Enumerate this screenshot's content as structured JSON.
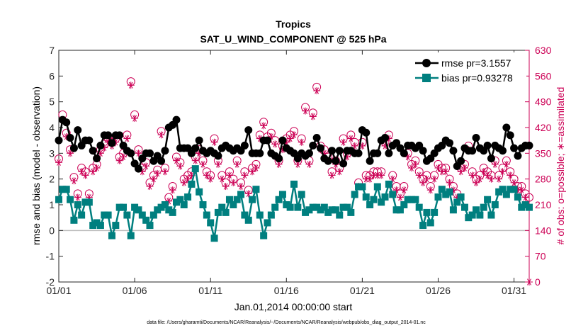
{
  "chart_data": {
    "type": "line",
    "title": "Tropics",
    "subtitle": "SAT_U_WIND_COMPONENT @ 525 hPa",
    "xlabel": "Jan.01,2014 00:00:00 start",
    "ylabel": "rmse and bias (model - observation)",
    "y2label": "# of obs: o=possible; ∗=assimilated",
    "footer": "data file: /Users/gharamti/Documents/NCAR/Reanalysis/~/Documents/NCAR/Reanalysis/webpub/obs_diag_output_2014-01.nc",
    "xlim": [
      0,
      31
    ],
    "ylim": [
      -2,
      7
    ],
    "y2lim": [
      0,
      630
    ],
    "x_tick_values": [
      0,
      5,
      10,
      15,
      20,
      25,
      30
    ],
    "x_tick_labels": [
      "01/01",
      "01/06",
      "01/11",
      "01/16",
      "01/21",
      "01/26",
      "01/31"
    ],
    "y_ticks": [
      "-2",
      "-1",
      "0",
      "1",
      "2",
      "3",
      "4",
      "5",
      "6",
      "7"
    ],
    "y2_ticks": [
      "0",
      "70",
      "140",
      "210",
      "280",
      "350",
      "420",
      "490",
      "560",
      "630"
    ],
    "colors": {
      "rmse": "#000000",
      "bias": "#007f7f",
      "obs": "#cc0055",
      "zero_line": "#bbbbbb"
    },
    "series": [
      {
        "name": "rmse pr=3.1557",
        "marker": "circle",
        "x": [
          0.0,
          0.25,
          0.5,
          0.75,
          1.0,
          1.25,
          1.5,
          1.75,
          2.0,
          2.25,
          2.5,
          2.75,
          3.0,
          3.25,
          3.5,
          3.75,
          4.0,
          4.25,
          4.5,
          4.75,
          5.0,
          5.25,
          5.5,
          5.75,
          6.0,
          6.25,
          6.5,
          6.75,
          7.0,
          7.25,
          7.5,
          7.75,
          8.0,
          8.25,
          8.5,
          8.75,
          9.0,
          9.25,
          9.5,
          9.75,
          10.0,
          10.25,
          10.5,
          10.75,
          11.0,
          11.25,
          11.5,
          11.75,
          12.0,
          12.25,
          12.5,
          12.75,
          13.0,
          13.25,
          13.5,
          13.75,
          14.0,
          14.25,
          14.5,
          14.75,
          15.0,
          15.25,
          15.5,
          15.75,
          16.0,
          16.25,
          16.5,
          16.75,
          17.0,
          17.25,
          17.5,
          17.75,
          18.0,
          18.25,
          18.5,
          18.75,
          19.0,
          19.25,
          19.5,
          19.75,
          20.0,
          20.25,
          20.5,
          20.75,
          21.0,
          21.25,
          21.5,
          21.75,
          22.0,
          22.25,
          22.5,
          22.75,
          23.0,
          23.25,
          23.5,
          23.75,
          24.0,
          24.25,
          24.5,
          24.75,
          25.0,
          25.25,
          25.5,
          25.75,
          26.0,
          26.25,
          26.5,
          26.75,
          27.0,
          27.25,
          27.5,
          27.75,
          28.0,
          28.25,
          28.5,
          28.75,
          29.0,
          29.25,
          29.5,
          29.75,
          30.0,
          30.25,
          30.5,
          30.75,
          31.0
        ],
        "values": [
          3.5,
          4.3,
          4.2,
          3.6,
          3.2,
          3.9,
          3.3,
          3.5,
          3.5,
          3.1,
          2.8,
          3.3,
          3.7,
          3.7,
          3.4,
          3.7,
          3.7,
          3.3,
          3.1,
          3.0,
          2.6,
          2.4,
          2.8,
          3.0,
          3.0,
          2.7,
          2.9,
          2.7,
          3.1,
          4.0,
          4.1,
          4.3,
          3.2,
          3.2,
          3.2,
          3.0,
          3.2,
          3.5,
          3.1,
          3.0,
          3.1,
          3.0,
          2.9,
          3.2,
          3.3,
          3.2,
          3.1,
          3.2,
          3.1,
          3.3,
          3.9,
          3.0,
          3.0,
          3.0,
          3.5,
          3.5,
          3.0,
          2.9,
          2.8,
          3.5,
          3.2,
          3.1,
          3.0,
          2.8,
          3.0,
          2.9,
          3.0,
          3.3,
          3.6,
          3.2,
          2.8,
          2.7,
          3.1,
          2.7,
          3.1,
          2.6,
          3.1,
          3.1,
          3.0,
          3.0,
          3.9,
          3.8,
          2.7,
          3.0,
          3.0,
          3.5,
          3.6,
          3.0,
          3.3,
          3.4,
          3.2,
          3.0,
          3.3,
          3.3,
          3.2,
          3.3,
          3.1,
          2.7,
          2.8,
          3.0,
          3.2,
          3.3,
          3.5,
          3.4,
          3.1,
          2.5,
          2.7,
          3.2,
          3.1,
          3.1,
          3.6,
          3.2,
          3.1,
          3.3,
          2.8,
          3.3,
          3.2,
          3.1,
          4.0,
          3.7,
          3.2,
          2.9,
          3.2,
          3.3,
          3.3
        ]
      },
      {
        "name": "bias pr=0.93278",
        "marker": "square",
        "x": [
          0.0,
          0.25,
          0.5,
          0.75,
          1.0,
          1.25,
          1.5,
          1.75,
          2.0,
          2.25,
          2.5,
          2.75,
          3.0,
          3.25,
          3.5,
          3.75,
          4.0,
          4.25,
          4.5,
          4.75,
          5.0,
          5.25,
          5.5,
          5.75,
          6.0,
          6.25,
          6.5,
          6.75,
          7.0,
          7.25,
          7.5,
          7.75,
          8.0,
          8.25,
          8.5,
          8.75,
          9.0,
          9.25,
          9.5,
          9.75,
          10.0,
          10.25,
          10.5,
          10.75,
          11.0,
          11.25,
          11.5,
          11.75,
          12.0,
          12.25,
          12.5,
          12.75,
          13.0,
          13.25,
          13.5,
          13.75,
          14.0,
          14.25,
          14.5,
          14.75,
          15.0,
          15.25,
          15.5,
          15.75,
          16.0,
          16.25,
          16.5,
          16.75,
          17.0,
          17.25,
          17.5,
          17.75,
          18.0,
          18.25,
          18.5,
          18.75,
          19.0,
          19.25,
          19.5,
          19.75,
          20.0,
          20.25,
          20.5,
          20.75,
          21.0,
          21.25,
          21.5,
          21.75,
          22.0,
          22.25,
          22.5,
          22.75,
          23.0,
          23.25,
          23.5,
          23.75,
          24.0,
          24.25,
          24.5,
          24.75,
          25.0,
          25.25,
          25.5,
          25.75,
          26.0,
          26.25,
          26.5,
          26.75,
          27.0,
          27.25,
          27.5,
          27.75,
          28.0,
          28.25,
          28.5,
          28.75,
          29.0,
          29.25,
          29.5,
          29.75,
          30.0,
          30.25,
          30.5,
          30.75,
          31.0
        ],
        "values": [
          1.2,
          1.6,
          1.6,
          1.2,
          0.4,
          1.0,
          0.6,
          1.1,
          1.1,
          0.2,
          0.3,
          0.2,
          0.6,
          0.6,
          -0.2,
          0.2,
          0.9,
          0.9,
          0.6,
          -0.2,
          0.9,
          0.8,
          0.6,
          0.4,
          0.2,
          0.6,
          0.8,
          0.9,
          1.0,
          0.8,
          0.7,
          1.1,
          1.2,
          1.0,
          1.3,
          1.8,
          2.4,
          1.5,
          1.0,
          0.6,
          0.3,
          -0.3,
          0.7,
          0.9,
          0.7,
          1.2,
          1.0,
          1.2,
          1.4,
          0.6,
          0.4,
          1.2,
          1.6,
          0.6,
          -0.2,
          0.3,
          0.6,
          0.9,
          1.2,
          1.4,
          1.0,
          0.9,
          1.8,
          0.9,
          1.4,
          0.7,
          0.8,
          0.9,
          0.9,
          0.8,
          0.9,
          0.7,
          0.8,
          0.8,
          0.6,
          0.9,
          0.9,
          0.7,
          1.4,
          1.7,
          1.7,
          1.3,
          1.0,
          1.2,
          1.7,
          1.1,
          1.3,
          1.8,
          1.4,
          0.8,
          0.8,
          1.0,
          1.2,
          1.2,
          1.2,
          0.9,
          0.2,
          0.7,
          0.3,
          0.7,
          1.3,
          1.6,
          1.4,
          1.5,
          0.8,
          1.1,
          1.3,
          0.9,
          0.5,
          0.6,
          0.8,
          0.6,
          0.9,
          1.2,
          0.6,
          1.0,
          1.5,
          1.6,
          1.4,
          1.6,
          1.6,
          1.3,
          0.9,
          1.0,
          0.9
        ]
      },
      {
        "name": "# obs possible",
        "marker": "o",
        "axis": "right",
        "x": [
          0.0,
          0.25,
          0.5,
          0.75,
          1.0,
          1.25,
          1.5,
          1.75,
          2.0,
          2.25,
          2.5,
          2.75,
          3.0,
          3.25,
          3.5,
          3.75,
          4.0,
          4.25,
          4.5,
          4.75,
          5.0,
          5.25,
          5.5,
          5.75,
          6.0,
          6.25,
          6.5,
          6.75,
          7.0,
          7.25,
          7.5,
          7.75,
          8.0,
          8.25,
          8.5,
          8.75,
          9.0,
          9.25,
          9.5,
          9.75,
          10.0,
          10.25,
          10.5,
          10.75,
          11.0,
          11.25,
          11.5,
          11.75,
          12.0,
          12.25,
          12.5,
          12.75,
          13.0,
          13.25,
          13.5,
          13.75,
          14.0,
          14.25,
          14.5,
          14.75,
          15.0,
          15.25,
          15.5,
          15.75,
          16.0,
          16.25,
          16.5,
          16.75,
          17.0,
          17.25,
          17.5,
          17.75,
          18.0,
          18.25,
          18.5,
          18.75,
          19.0,
          19.25,
          19.5,
          19.75,
          20.0,
          20.25,
          20.5,
          20.75,
          21.0,
          21.25,
          21.5,
          21.75,
          22.0,
          22.25,
          22.5,
          22.75,
          23.0,
          23.25,
          23.5,
          23.75,
          24.0,
          24.25,
          24.5,
          24.75,
          25.0,
          25.25,
          25.5,
          25.75,
          26.0,
          26.25,
          26.5,
          26.75,
          27.0,
          27.25,
          27.5,
          27.75,
          28.0,
          28.25,
          28.5,
          28.75,
          29.0,
          29.25,
          29.5,
          29.75,
          30.0,
          30.25,
          30.5,
          30.75,
          31.0
        ],
        "values": [
          335,
          455,
          405,
          360,
          285,
          240,
          310,
          300,
          240,
          310,
          320,
          360,
          375,
          390,
          380,
          390,
          340,
          350,
          400,
          545,
          455,
          360,
          310,
          325,
          270,
          290,
          305,
          410,
          310,
          230,
          260,
          340,
          325,
          280,
          290,
          300,
          340,
          360,
          330,
          300,
          290,
          390,
          330,
          290,
          270,
          300,
          280,
          330,
          270,
          300,
          250,
          310,
          320,
          400,
          435,
          395,
          405,
          385,
          330,
          370,
          390,
          400,
          410,
          330,
          390,
          475,
          330,
          460,
          530,
          370,
          360,
          340,
          300,
          330,
          310,
          390,
          350,
          400,
          380,
          270,
          380,
          290,
          290,
          300,
          300,
          300,
          380,
          400,
          290,
          260,
          240,
          260,
          350,
          320,
          330,
          300,
          280,
          290,
          260,
          290,
          320,
          310,
          310,
          280,
          260,
          240,
          310,
          320,
          370,
          300,
          280,
          290,
          310,
          300,
          290,
          330,
          290,
          310,
          330,
          300,
          280,
          260,
          260,
          240,
          230
        ]
      },
      {
        "name": "# obs assimilated",
        "marker": "asterisk",
        "axis": "right",
        "x": [
          0.0,
          0.25,
          0.5,
          0.75,
          1.0,
          1.25,
          1.5,
          1.75,
          2.0,
          2.25,
          2.5,
          2.75,
          3.0,
          3.25,
          3.5,
          3.75,
          4.0,
          4.25,
          4.5,
          4.75,
          5.0,
          5.25,
          5.5,
          5.75,
          6.0,
          6.25,
          6.5,
          6.75,
          7.0,
          7.25,
          7.5,
          7.75,
          8.0,
          8.25,
          8.5,
          8.75,
          9.0,
          9.25,
          9.5,
          9.75,
          10.0,
          10.25,
          10.5,
          10.75,
          11.0,
          11.25,
          11.5,
          11.75,
          12.0,
          12.25,
          12.5,
          12.75,
          13.0,
          13.25,
          13.5,
          13.75,
          14.0,
          14.25,
          14.5,
          14.75,
          15.0,
          15.25,
          15.5,
          15.75,
          16.0,
          16.25,
          16.5,
          16.75,
          17.0,
          17.25,
          17.5,
          17.75,
          18.0,
          18.25,
          18.5,
          18.75,
          19.0,
          19.25,
          19.5,
          19.75,
          20.0,
          20.25,
          20.5,
          20.75,
          21.0,
          21.25,
          21.5,
          21.75,
          22.0,
          22.25,
          22.5,
          22.75,
          23.0,
          23.25,
          23.5,
          23.75,
          24.0,
          24.25,
          24.5,
          24.75,
          25.0,
          25.25,
          25.5,
          25.75,
          26.0,
          26.25,
          26.5,
          26.75,
          27.0,
          27.25,
          27.5,
          27.75,
          28.0,
          28.25,
          28.5,
          28.75,
          29.0,
          29.25,
          29.5,
          29.75,
          30.0,
          30.25,
          30.5,
          30.75,
          31.0
        ],
        "values": [
          325,
          440,
          395,
          350,
          275,
          230,
          300,
          290,
          230,
          300,
          310,
          350,
          365,
          380,
          370,
          380,
          330,
          340,
          390,
          535,
          445,
          350,
          300,
          315,
          260,
          280,
          295,
          400,
          300,
          220,
          250,
          330,
          315,
          270,
          280,
          290,
          330,
          350,
          320,
          290,
          280,
          380,
          320,
          280,
          260,
          290,
          270,
          320,
          260,
          290,
          240,
          300,
          310,
          390,
          425,
          385,
          395,
          375,
          320,
          360,
          380,
          390,
          400,
          320,
          380,
          465,
          320,
          450,
          520,
          360,
          350,
          330,
          290,
          320,
          300,
          380,
          340,
          390,
          370,
          260,
          370,
          280,
          280,
          290,
          290,
          290,
          370,
          390,
          280,
          250,
          230,
          250,
          340,
          310,
          320,
          290,
          270,
          280,
          250,
          280,
          310,
          300,
          300,
          270,
          250,
          230,
          300,
          310,
          360,
          290,
          270,
          280,
          300,
          290,
          280,
          320,
          280,
          300,
          320,
          290,
          270,
          250,
          250,
          230,
          0
        ]
      }
    ],
    "legend_position": "top-right",
    "grid": false
  }
}
